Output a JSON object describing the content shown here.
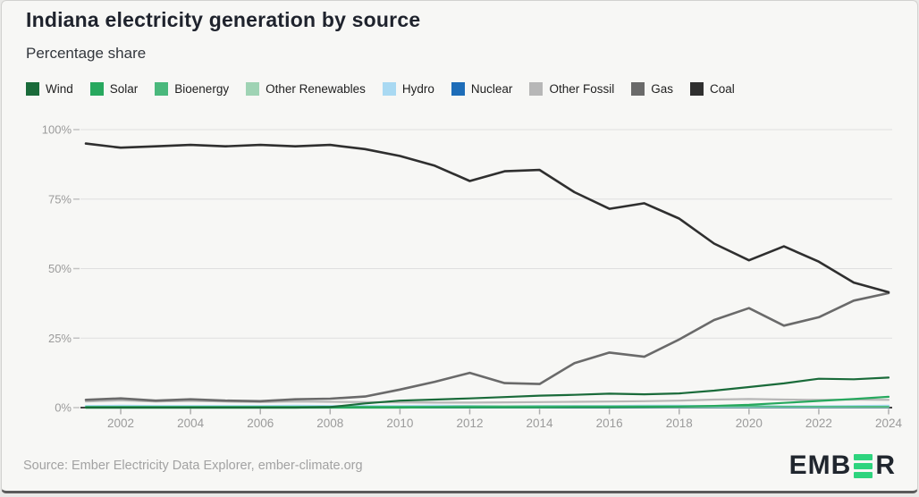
{
  "header": {
    "title": "Indiana electricity generation by source",
    "subtitle": "Percentage share"
  },
  "footer": {
    "source": "Source: Ember Electricity Data Explorer, ember-climate.org",
    "logo_text_left": "EMB",
    "logo_text_right": "R"
  },
  "colors": {
    "background": "#f7f7f5",
    "grid": "#dfdfdf",
    "axis": "#454545",
    "tick": "#aeaeae",
    "tick_label": "#9b9b9b",
    "logo_green": "#2ed47e",
    "logo_dark": "#20262e"
  },
  "chart_data": {
    "type": "line",
    "title": "Indiana electricity generation by source",
    "subtitle": "Percentage share",
    "xlabel": "",
    "ylabel": "Percentage share",
    "ylim": [
      0,
      100
    ],
    "grid": "horizontal",
    "legend_position": "top",
    "yticks": [
      0,
      25,
      50,
      75,
      100
    ],
    "ytick_labels": [
      "0%",
      "25%",
      "50%",
      "75%",
      "100%"
    ],
    "x": [
      2001,
      2002,
      2003,
      2004,
      2005,
      2006,
      2007,
      2008,
      2009,
      2010,
      2011,
      2012,
      2013,
      2014,
      2015,
      2016,
      2017,
      2018,
      2019,
      2020,
      2021,
      2022,
      2023,
      2024
    ],
    "xtick_labels": [
      "2002",
      "2004",
      "2006",
      "2008",
      "2010",
      "2012",
      "2014",
      "2016",
      "2018",
      "2020",
      "2022",
      "2024"
    ],
    "series": [
      {
        "name": "Wind",
        "color": "#1a6b3a",
        "values": [
          0,
          0,
          0,
          0,
          0,
          0,
          0,
          0.2,
          1.5,
          2.5,
          2.9,
          3.3,
          3.8,
          4.3,
          4.6,
          5.0,
          4.8,
          5.1,
          6.1,
          7.4,
          8.7,
          10.4,
          10.2,
          10.8
        ]
      },
      {
        "name": "Solar",
        "color": "#27a85e",
        "values": [
          0,
          0,
          0,
          0,
          0,
          0,
          0,
          0,
          0,
          0,
          0.1,
          0.1,
          0.1,
          0.1,
          0.2,
          0.2,
          0.3,
          0.4,
          0.6,
          1.0,
          1.7,
          2.4,
          3.1,
          3.9
        ]
      },
      {
        "name": "Bioenergy",
        "color": "#4ab87c",
        "values": [
          0.4,
          0.4,
          0.4,
          0.4,
          0.4,
          0.4,
          0.4,
          0.4,
          0.4,
          0.4,
          0.4,
          0.5,
          0.5,
          0.5,
          0.5,
          0.5,
          0.5,
          0.5,
          0.5,
          0.5,
          0.4,
          0.4,
          0.4,
          0.4
        ]
      },
      {
        "name": "Other Renewables",
        "color": "#9fd3b4",
        "values": [
          0.1,
          0.1,
          0.1,
          0.1,
          0.1,
          0.1,
          0.1,
          0.1,
          0.1,
          0.1,
          0.1,
          0.1,
          0.1,
          0.1,
          0.1,
          0.1,
          0.1,
          0.1,
          0.1,
          0.1,
          0.1,
          0.1,
          0.1,
          0.1
        ]
      },
      {
        "name": "Hydro",
        "color": "#a9d9f2",
        "values": [
          0.5,
          0.6,
          0.5,
          0.5,
          0.5,
          0.5,
          0.6,
          0.5,
          0.5,
          0.5,
          0.6,
          0.5,
          0.4,
          0.5,
          0.5,
          0.5,
          0.6,
          0.6,
          0.5,
          0.5,
          0.4,
          0.4,
          0.5,
          0.6
        ]
      },
      {
        "name": "Nuclear",
        "color": "#1d6db8",
        "values": [
          0,
          0,
          0,
          0,
          0,
          0,
          0,
          0,
          0,
          0,
          0,
          0,
          0,
          0,
          0,
          0,
          0,
          0,
          0,
          0,
          0,
          0,
          0,
          0
        ]
      },
      {
        "name": "Other Fossil",
        "color": "#b7b7b7",
        "values": [
          2.2,
          2.6,
          2.2,
          2.4,
          2.2,
          2.0,
          2.2,
          2.1,
          2.0,
          1.9,
          1.8,
          1.8,
          1.9,
          2.0,
          2.1,
          2.2,
          2.3,
          2.5,
          2.9,
          3.1,
          2.9,
          2.8,
          2.9,
          2.8
        ]
      },
      {
        "name": "Gas",
        "color": "#6a6a6a",
        "values": [
          2.8,
          3.3,
          2.5,
          3.0,
          2.5,
          2.3,
          3.0,
          3.2,
          4.0,
          6.5,
          9.3,
          12.5,
          8.8,
          8.5,
          16.0,
          19.8,
          18.3,
          24.5,
          31.5,
          35.8,
          29.5,
          32.5,
          38.5,
          41.2
        ]
      },
      {
        "name": "Coal",
        "color": "#2f2f2f",
        "values": [
          95,
          93.5,
          94,
          94.5,
          94,
          94.5,
          94,
          94.5,
          93,
          90.5,
          87,
          81.5,
          85,
          85.5,
          77.5,
          71.5,
          73.5,
          68,
          59,
          53,
          58,
          52.5,
          45,
          41.5
        ]
      }
    ]
  }
}
